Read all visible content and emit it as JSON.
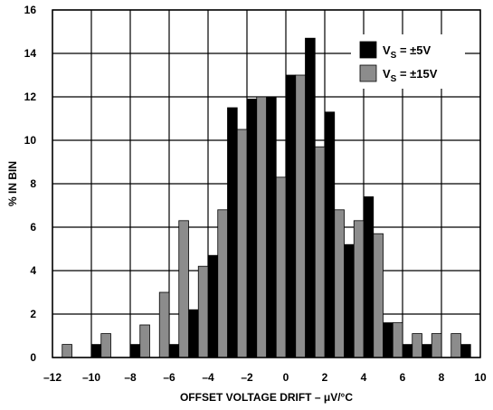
{
  "chart_data": {
    "type": "bar",
    "title": "",
    "xlabel": "OFFSET VOLTAGE DRIFT – μV/°C",
    "ylabel": "% IN BIN",
    "xlim": [
      -12,
      10
    ],
    "ylim": [
      0,
      16
    ],
    "x_ticks": [
      -12,
      -10,
      -8,
      -6,
      -4,
      -2,
      0,
      2,
      4,
      6,
      8,
      10
    ],
    "x_tick_labels": [
      "–12",
      "–10",
      "–8",
      "–6",
      "–4",
      "–2",
      "0",
      "2",
      "4",
      "6",
      "8",
      "10"
    ],
    "y_ticks": [
      0,
      2,
      4,
      6,
      8,
      10,
      12,
      14,
      16
    ],
    "y_tick_labels": [
      "0",
      "2",
      "4",
      "6",
      "8",
      "10",
      "12",
      "14",
      "16"
    ],
    "grid": true,
    "legend_position": "top-right",
    "bin_width": 1,
    "series": [
      {
        "name": "V_S = ±5V",
        "legend_main": "V",
        "legend_sub": "S",
        "legend_rest": " = ±5V",
        "color": "#000000",
        "x": [
          -12,
          -11,
          -10,
          -9,
          -8,
          -7,
          -6,
          -5,
          -4,
          -3,
          -2,
          -1,
          0,
          1,
          2,
          3,
          4,
          5,
          6,
          7,
          8,
          9
        ],
        "values": [
          0,
          0,
          0.6,
          0,
          0.6,
          0,
          0.6,
          2.2,
          4.7,
          11.5,
          11.9,
          12.0,
          13.0,
          14.7,
          11.3,
          5.2,
          7.4,
          1.6,
          0.6,
          0.6,
          0,
          0.6
        ]
      },
      {
        "name": "V_S = ±15V",
        "legend_main": "V",
        "legend_sub": "S",
        "legend_rest": " = ±15V",
        "color": "#8c8c8c",
        "x": [
          -12,
          -11,
          -10,
          -9,
          -8,
          -7,
          -6,
          -5,
          -4,
          -3,
          -2,
          -1,
          0,
          1,
          2,
          3,
          4,
          5,
          6,
          7,
          8,
          9
        ],
        "values": [
          0.6,
          0,
          1.1,
          0,
          1.5,
          3.0,
          6.3,
          4.2,
          6.8,
          10.5,
          12.0,
          8.3,
          13.0,
          9.7,
          6.8,
          6.3,
          5.7,
          1.6,
          1.1,
          1.1,
          1.1,
          0
        ]
      }
    ]
  }
}
